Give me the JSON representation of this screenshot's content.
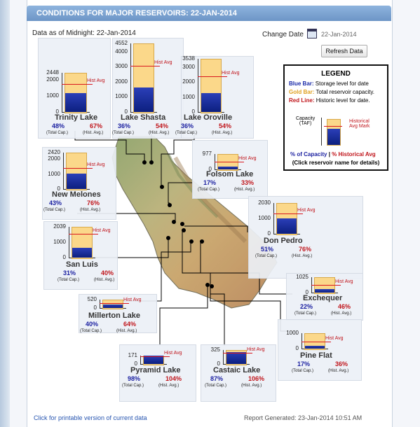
{
  "title": "CONDITIONS FOR MAJOR RESERVOIRS: 22-JAN-2014",
  "data_as_of": "Data as of Midnight: 22-Jan-2014",
  "change_date_label": "Change Date",
  "date_value": "22-Jan-2014",
  "refresh_label": "Refresh Data",
  "legend": {
    "title": "LEGEND",
    "blue_key": "Blue Bar:",
    "blue_desc": "Storage level for date",
    "gold_key": "Gold Bar:",
    "gold_desc": "Total reservoir capacity.",
    "red_key": "Red Line:",
    "red_desc": "Historic level for date.",
    "capacity_label_1": "Capacity",
    "capacity_label_2": "(TAF)",
    "hist_label_1": "Historical",
    "hist_label_2": "Avg Mark",
    "pct_cap": "% of Capacity",
    "pct_hist": "% Historical Avg",
    "instructions": "(Click reservoir name for details)"
  },
  "hist_avg_label": "Hist Avg",
  "total_cap_label": "(Total Cap.)",
  "hist_avg_small": "(Hist. Avg.)",
  "reservoirs": [
    {
      "name": "Trinity Lake",
      "capacity_taf": 2448,
      "ticks": [
        "2448",
        "2000",
        "1000",
        "0"
      ],
      "pct_capacity": "48%",
      "pct_hist": "67%",
      "storage_frac": 0.48,
      "hist_frac": 0.72
    },
    {
      "name": "Lake Shasta",
      "capacity_taf": 4552,
      "ticks": [
        "4552",
        "4000",
        "3000",
        "2000",
        "1000",
        "0"
      ],
      "pct_capacity": "36%",
      "pct_hist": "54%",
      "storage_frac": 0.36,
      "hist_frac": 0.67
    },
    {
      "name": "Lake Oroville",
      "capacity_taf": 3538,
      "ticks": [
        "3538",
        "3000",
        "2000",
        "1000",
        "0"
      ],
      "pct_capacity": "36%",
      "pct_hist": "54%",
      "storage_frac": 0.36,
      "hist_frac": 0.67
    },
    {
      "name": "Folsom Lake",
      "capacity_taf": 977,
      "ticks": [
        "977",
        "0"
      ],
      "pct_capacity": "17%",
      "pct_hist": "33%",
      "storage_frac": 0.17,
      "hist_frac": 0.52
    },
    {
      "name": "New Melones",
      "capacity_taf": 2420,
      "ticks": [
        "2420",
        "2000",
        "1000",
        "0"
      ],
      "pct_capacity": "43%",
      "pct_hist": "76%",
      "storage_frac": 0.43,
      "hist_frac": 0.57
    },
    {
      "name": "Don Pedro",
      "capacity_taf": 2030,
      "ticks": [
        "2030",
        "1000",
        "0"
      ],
      "pct_capacity": "51%",
      "pct_hist": "76%",
      "storage_frac": 0.51,
      "hist_frac": 0.67
    },
    {
      "name": "San Luis",
      "capacity_taf": 2039,
      "ticks": [
        "2039",
        "1000",
        "0"
      ],
      "pct_capacity": "31%",
      "pct_hist": "40%",
      "storage_frac": 0.31,
      "hist_frac": 0.77
    },
    {
      "name": "Exchequer",
      "capacity_taf": 1025,
      "ticks": [
        "1025",
        "0"
      ],
      "pct_capacity": "22%",
      "pct_hist": "46%",
      "storage_frac": 0.22,
      "hist_frac": 0.48
    },
    {
      "name": "Millerton Lake",
      "capacity_taf": 520,
      "ticks": [
        "520",
        "0"
      ],
      "pct_capacity": "40%",
      "pct_hist": "64%",
      "storage_frac": 0.4,
      "hist_frac": 0.62
    },
    {
      "name": "Pine Flat",
      "capacity_taf": 1000,
      "ticks": [
        "1000",
        "0"
      ],
      "pct_capacity": "17%",
      "pct_hist": "36%",
      "storage_frac": 0.17,
      "hist_frac": 0.47
    },
    {
      "name": "Pyramid Lake",
      "capacity_taf": 171,
      "ticks": [
        "171",
        "0"
      ],
      "pct_capacity": "98%",
      "pct_hist": "104%",
      "storage_frac": 0.98,
      "hist_frac": 0.94
    },
    {
      "name": "Castaic Lake",
      "capacity_taf": 325,
      "ticks": [
        "325",
        "0"
      ],
      "pct_capacity": "87%",
      "pct_hist": "106%",
      "storage_frac": 0.87,
      "hist_frac": 0.82
    }
  ],
  "footer_link": "Click for printable version of current data",
  "report_generated": "Report Generated: 23-Jan-2014 10:51 AM"
}
